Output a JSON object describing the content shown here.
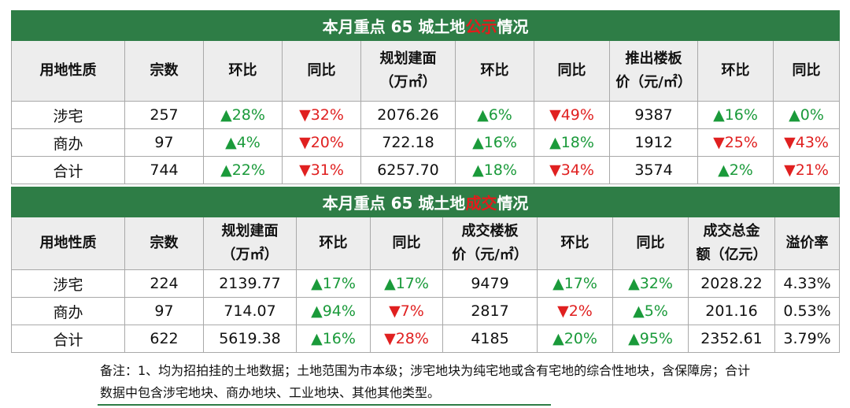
{
  "table1": {
    "title_pre": "本月重点 65 城土地",
    "title_hl": "公示",
    "title_post": "情况",
    "headers": [
      "用地性质",
      "宗数",
      "环比",
      "同比",
      "规划建面\n（万㎡）",
      "环比",
      "同比",
      "推出楼板\n价（元/㎡）",
      "环比",
      "同比"
    ],
    "rows": [
      [
        {
          "t": "涉宅"
        },
        {
          "t": "257"
        },
        {
          "t": "▲28%",
          "c": "up"
        },
        {
          "t": "▼32%",
          "c": "down"
        },
        {
          "t": "2076.26"
        },
        {
          "t": "▲6%",
          "c": "up"
        },
        {
          "t": "▼49%",
          "c": "down"
        },
        {
          "t": "9387"
        },
        {
          "t": "▲16%",
          "c": "up"
        },
        {
          "t": "▲0%",
          "c": "up"
        }
      ],
      [
        {
          "t": "商办"
        },
        {
          "t": "97"
        },
        {
          "t": "▲4%",
          "c": "up"
        },
        {
          "t": "▼20%",
          "c": "down"
        },
        {
          "t": "722.18"
        },
        {
          "t": "▲16%",
          "c": "up"
        },
        {
          "t": "▲18%",
          "c": "up"
        },
        {
          "t": "1912"
        },
        {
          "t": "▼25%",
          "c": "down"
        },
        {
          "t": "▼43%",
          "c": "down"
        }
      ],
      [
        {
          "t": "合计"
        },
        {
          "t": "744"
        },
        {
          "t": "▲22%",
          "c": "up"
        },
        {
          "t": "▼31%",
          "c": "down"
        },
        {
          "t": "6257.70"
        },
        {
          "t": "▲18%",
          "c": "up"
        },
        {
          "t": "▼34%",
          "c": "down"
        },
        {
          "t": "3574"
        },
        {
          "t": "▲2%",
          "c": "up"
        },
        {
          "t": "▼21%",
          "c": "down"
        }
      ]
    ]
  },
  "table2": {
    "title_pre": "本月重点 65 城土地",
    "title_hl": "成交",
    "title_post": "情况",
    "headers": [
      "用地性质",
      "宗数",
      "规划建面\n（万㎡）",
      "环比",
      "同比",
      "成交楼板\n价（元/㎡）",
      "环比",
      "同比",
      "成交总金\n额（亿元）",
      "溢价率"
    ],
    "rows": [
      [
        {
          "t": "涉宅"
        },
        {
          "t": "224"
        },
        {
          "t": "2139.77"
        },
        {
          "t": "▲17%",
          "c": "up"
        },
        {
          "t": "▲17%",
          "c": "up"
        },
        {
          "t": "9479"
        },
        {
          "t": "▲17%",
          "c": "up"
        },
        {
          "t": "▲32%",
          "c": "up"
        },
        {
          "t": "2028.22"
        },
        {
          "t": "4.33%"
        }
      ],
      [
        {
          "t": "商办"
        },
        {
          "t": "97"
        },
        {
          "t": "714.07"
        },
        {
          "t": "▲94%",
          "c": "up"
        },
        {
          "t": "▼7%",
          "c": "down"
        },
        {
          "t": "2817"
        },
        {
          "t": "▼2%",
          "c": "down"
        },
        {
          "t": "▲5%",
          "c": "up"
        },
        {
          "t": "201.16"
        },
        {
          "t": "0.53%"
        }
      ],
      [
        {
          "t": "合计"
        },
        {
          "t": "622"
        },
        {
          "t": "5619.38"
        },
        {
          "t": "▲16%",
          "c": "up"
        },
        {
          "t": "▼28%",
          "c": "down"
        },
        {
          "t": "4185"
        },
        {
          "t": "▲20%",
          "c": "up"
        },
        {
          "t": "▲95%",
          "c": "up"
        },
        {
          "t": "2352.61"
        },
        {
          "t": "3.79%"
        }
      ]
    ]
  },
  "note": "备注：1、均为招拍挂的土地数据；土地范围为市本级；涉宅地块为纯宅地或含有宅地的综合性地块，含保障房；合计数据中包含涉宅地块、商办地块、工业地块、其他其他类型。",
  "colors": {
    "title_bg": "#2e7d46",
    "highlight": "#e41b1b",
    "up": "#1a9a3a",
    "down": "#e02020",
    "header_bg": "#ededed"
  }
}
